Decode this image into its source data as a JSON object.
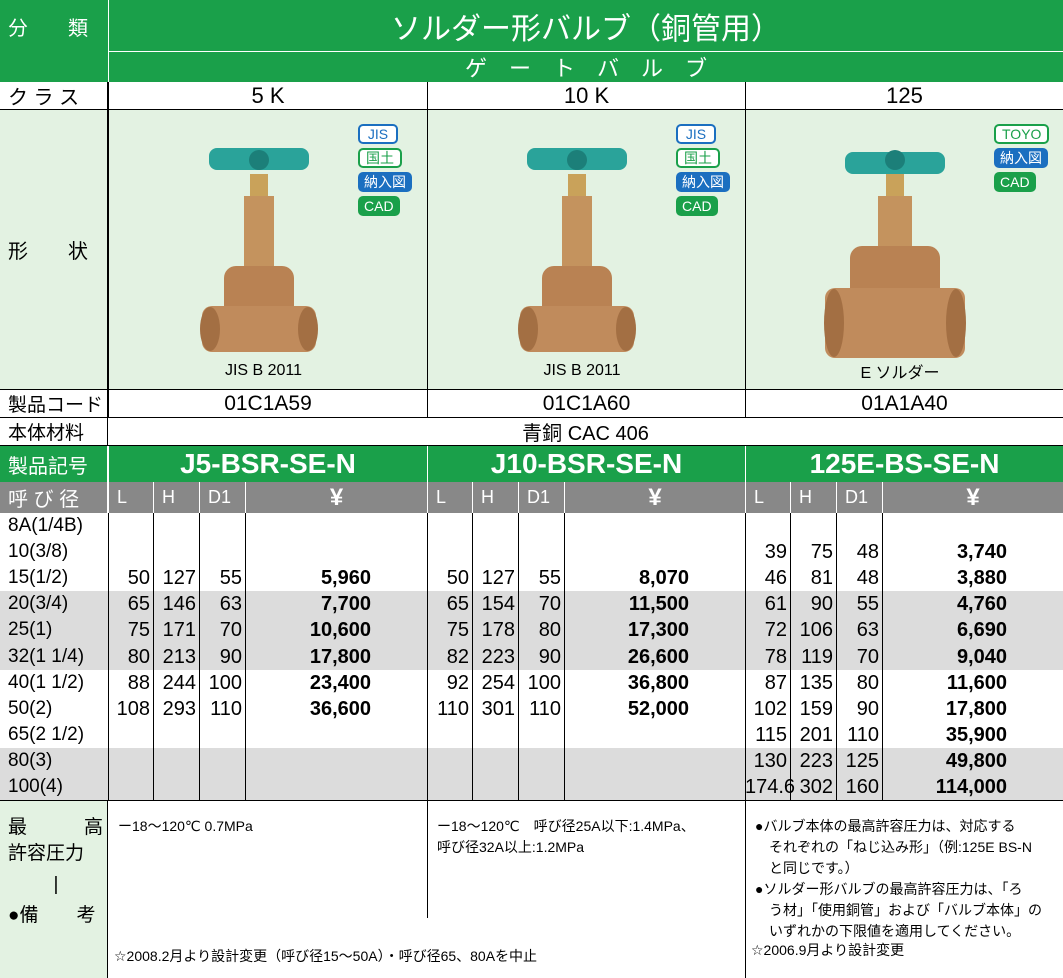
{
  "header": {
    "category_label": "分　　類",
    "title": "ソルダー形バルブ（銅管用）",
    "subtitle": "ゲ　ー　ト　バ　ル　ブ"
  },
  "class_label": "ク ラ ス",
  "shape_label": "形　　状",
  "code_label": "製品コード",
  "material_label": "本体材料",
  "material": "青銅 CAC 406",
  "model_label": "製品記号",
  "size_label": "呼 び 径",
  "dim_headers": [
    "L",
    "H",
    "D1",
    "¥"
  ],
  "columns": [
    {
      "class": "5 K",
      "badges": [
        {
          "text": "JIS",
          "style": "outline-blue"
        },
        {
          "text": "国土",
          "style": "outline-green"
        },
        {
          "text": "納入図",
          "style": "fill-blue"
        },
        {
          "text": "CAD",
          "style": "fill-green"
        }
      ],
      "caption": "JIS B 2011",
      "code": "01C1A59",
      "model": "J5-BSR-SE-N",
      "note": [
        "ー18〜120℃ 0.7MPa"
      ]
    },
    {
      "class": "10 K",
      "badges": [
        {
          "text": "JIS",
          "style": "outline-blue"
        },
        {
          "text": "国土",
          "style": "outline-green"
        },
        {
          "text": "納入図",
          "style": "fill-blue"
        },
        {
          "text": "CAD",
          "style": "fill-green"
        }
      ],
      "caption": "JIS B 2011",
      "code": "01C1A60",
      "model": "J10-BSR-SE-N",
      "note": [
        "ー18〜120℃　呼び径25A以下:1.4MPa、",
        "呼び径32A以上:1.2MPa"
      ]
    },
    {
      "class": "125",
      "badges": [
        {
          "text": "TOYO",
          "style": "outline-green"
        },
        {
          "text": "納入図",
          "style": "fill-blue"
        },
        {
          "text": "CAD",
          "style": "fill-green"
        }
      ],
      "caption": "E ソルダー",
      "code": "01A1A40",
      "model": "125E-BS-SE-N",
      "note": [
        "●バルブ本体の最高許容圧力は、対応する",
        "　それぞれの「ねじ込み形」（例:125E BS-N",
        "　と同じです。）",
        "●ソルダー形バルブの最高許容圧力は、「ろ",
        "　う材」「使用銅管」および「バルブ本体」の",
        "　いずれかの下限値を適用してください。"
      ]
    }
  ],
  "sizes": [
    "8A(1/4B)",
    "10(3/8)",
    "15(1/2)",
    "20(3/4)",
    "25(1)",
    "32(1 1/4)",
    "40(1 1/2)",
    "50(2)",
    "65(2 1/2)",
    "80(3)",
    "100(4)"
  ],
  "rows": [
    [
      null,
      null,
      null
    ],
    [
      null,
      null,
      [
        "39",
        "75",
        "48",
        "3,740"
      ]
    ],
    [
      [
        "50",
        "127",
        "55",
        "5,960"
      ],
      [
        "50",
        "127",
        "55",
        "8,070"
      ],
      [
        "46",
        "81",
        "48",
        "3,880"
      ]
    ],
    [
      [
        "65",
        "146",
        "63",
        "7,700"
      ],
      [
        "65",
        "154",
        "70",
        "11,500"
      ],
      [
        "61",
        "90",
        "55",
        "4,760"
      ]
    ],
    [
      [
        "75",
        "171",
        "70",
        "10,600"
      ],
      [
        "75",
        "178",
        "80",
        "17,300"
      ],
      [
        "72",
        "106",
        "63",
        "6,690"
      ]
    ],
    [
      [
        "80",
        "213",
        "90",
        "17,800"
      ],
      [
        "82",
        "223",
        "90",
        "26,600"
      ],
      [
        "78",
        "119",
        "70",
        "9,040"
      ]
    ],
    [
      [
        "88",
        "244",
        "100",
        "23,400"
      ],
      [
        "92",
        "254",
        "100",
        "36,800"
      ],
      [
        "87",
        "135",
        "80",
        "11,600"
      ]
    ],
    [
      [
        "108",
        "293",
        "110",
        "36,600"
      ],
      [
        "110",
        "301",
        "110",
        "52,000"
      ],
      [
        "102",
        "159",
        "90",
        "17,800"
      ]
    ],
    [
      null,
      null,
      [
        "115",
        "201",
        "110",
        "35,900"
      ]
    ],
    [
      null,
      null,
      [
        "130",
        "223",
        "125",
        "49,800"
      ]
    ],
    [
      null,
      null,
      [
        "174.6",
        "302",
        "160",
        "114,000"
      ]
    ]
  ],
  "notes_label": [
    "最　　　高",
    "許容圧力",
    "|",
    "●備　　考"
  ],
  "footnotes": [
    "☆2008.2月より設計変更（呼び径15〜50A）・呼び径65、80Aを中止",
    "☆2006.9月より設計変更"
  ]
}
